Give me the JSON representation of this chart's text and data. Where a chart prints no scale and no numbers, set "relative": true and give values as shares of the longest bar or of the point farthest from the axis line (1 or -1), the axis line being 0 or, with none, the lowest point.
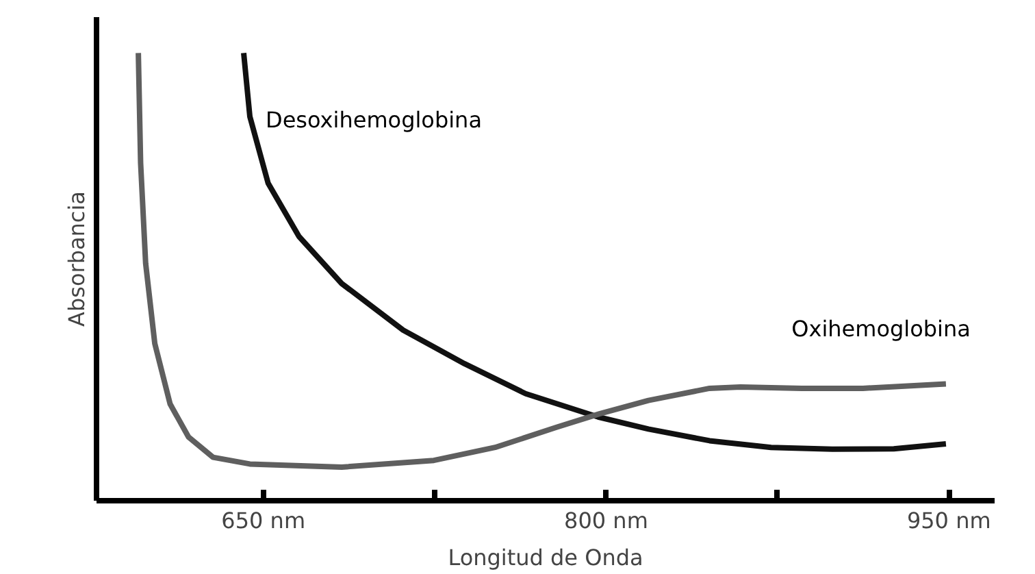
{
  "chart_data": {
    "type": "line",
    "relative": true,
    "xlabel": "Longitud de Onda",
    "ylabel": "Absorbancia",
    "xlim": [
      577,
      970
    ],
    "xticks": [
      {
        "value": 650,
        "label": "650 nm"
      },
      {
        "value": 725,
        "label": null
      },
      {
        "value": 800,
        "label": "800 nm"
      },
      {
        "value": 875,
        "label": null
      },
      {
        "value": 950,
        "label": "950 nm"
      }
    ],
    "tick_labels": "x",
    "grid": false,
    "marker": "none",
    "line_style": "solid",
    "series": [
      {
        "name": "Desoxihemoglobina",
        "color": "#111111",
        "x": [
          641.4,
          644.1,
          652.1,
          665.6,
          684.3,
          711.2,
          738.0,
          764.8,
          796.5,
          818.5,
          845.3,
          872.2,
          899.0,
          925.9,
          948.7
        ],
        "values": [
          1,
          0.858,
          0.709,
          0.59,
          0.485,
          0.381,
          0.306,
          0.239,
          0.187,
          0.16,
          0.134,
          0.119,
          0.115,
          0.116,
          0.127
        ]
      },
      {
        "name": "Oxihemoglobina",
        "color": "#5f5f5f",
        "x": [
          595.3,
          596.3,
          598.5,
          602.5,
          609.2,
          617.3,
          628.0,
          644.1,
          684.3,
          724.6,
          751.4,
          778.3,
          797.1,
          818.5,
          845.3,
          858.8,
          885.6,
          912.4,
          948.7
        ],
        "values": [
          1,
          0.754,
          0.53,
          0.351,
          0.216,
          0.142,
          0.097,
          0.082,
          0.075,
          0.09,
          0.119,
          0.164,
          0.194,
          0.224,
          0.251,
          0.254,
          0.251,
          0.251,
          0.261
        ]
      }
    ]
  }
}
